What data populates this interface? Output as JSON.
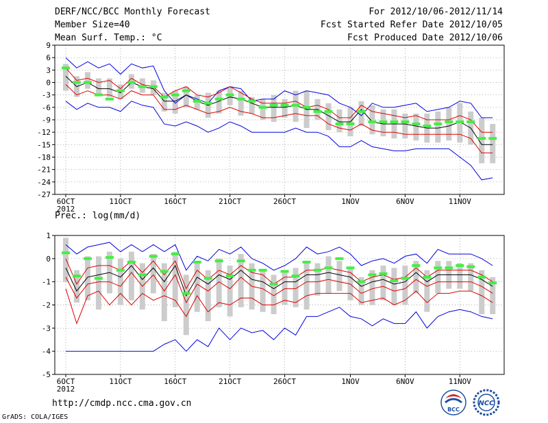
{
  "header": {
    "title": "DERF/NCC/BCC Monthly Forecast",
    "member_size": "Member Size=40",
    "variable": "Mean Surf. Temp.: °C",
    "period": "For 2012/10/06-2012/11/14",
    "started": "Fcst Started Refer Date 2012/10/05",
    "produced": "Fcst Produced Date 2012/10/06"
  },
  "footer": {
    "url": "http://cmdp.ncc.cma.gov.cn",
    "credit": "GrADS: COLA/IGES",
    "logo_left_text": "BCC",
    "logo_right_text": "NCC"
  },
  "colors": {
    "envelope": "#0000dd",
    "spread": "#dd0000",
    "mean": "#000000",
    "box": "#cccccc",
    "marker": "#44ee44"
  },
  "chart_data": [
    {
      "type": "line",
      "title": "Mean Surf. Temp.: °C",
      "x": [
        "2012-10-06",
        "2012-10-07",
        "2012-10-08",
        "2012-10-09",
        "2012-10-10",
        "2012-10-11",
        "2012-10-12",
        "2012-10-13",
        "2012-10-14",
        "2012-10-15",
        "2012-10-16",
        "2012-10-17",
        "2012-10-18",
        "2012-10-19",
        "2012-10-20",
        "2012-10-21",
        "2012-10-22",
        "2012-10-23",
        "2012-10-24",
        "2012-10-25",
        "2012-10-26",
        "2012-10-27",
        "2012-10-28",
        "2012-10-29",
        "2012-10-30",
        "2012-10-31",
        "2012-11-01",
        "2012-11-02",
        "2012-11-03",
        "2012-11-04",
        "2012-11-05",
        "2012-11-06",
        "2012-11-07",
        "2012-11-08",
        "2012-11-09",
        "2012-11-10",
        "2012-11-11",
        "2012-11-12",
        "2012-11-13",
        "2012-11-14"
      ],
      "xticks": [
        "6OCT",
        "11OCT",
        "16OCT",
        "21OCT",
        "26OCT",
        "1NOV",
        "6NOV",
        "11NOV"
      ],
      "xtick_year": "2012",
      "ylim": [
        -27,
        9
      ],
      "yticks": [
        9,
        6,
        3,
        0,
        -3,
        -6,
        -9,
        -12,
        -15,
        -18,
        -21,
        -24,
        -27
      ],
      "series": [
        {
          "name": "max",
          "color": "#0000dd",
          "values": [
            6,
            3.5,
            5,
            3.5,
            4.5,
            2,
            4.5,
            3.5,
            4,
            -2,
            -5,
            -3,
            -4,
            -5,
            -2,
            -1,
            -1.5,
            -4.5,
            -4,
            -4,
            -2,
            -3,
            -2,
            -2.5,
            -3,
            -5,
            -6,
            -8,
            -5,
            -6,
            -6,
            -5.5,
            -5,
            -7,
            -6.5,
            -6,
            -4.5,
            -5,
            -8.5,
            -8.5
          ]
        },
        {
          "name": "upper",
          "color": "#dd0000",
          "values": [
            3.5,
            0.5,
            1,
            0,
            0.5,
            -1.5,
            1,
            -0.5,
            -1,
            -3.5,
            -2,
            -1,
            -3,
            -3.5,
            -2.5,
            -1,
            -2.5,
            -4,
            -5,
            -5,
            -5,
            -4.5,
            -6,
            -5.5,
            -6.5,
            -8.5,
            -8.5,
            -5.5,
            -7,
            -7.5,
            -8,
            -8.5,
            -8,
            -9,
            -9,
            -9,
            -8,
            -9,
            -12,
            -12
          ]
        },
        {
          "name": "mean",
          "color": "#000000",
          "values": [
            1.5,
            -1,
            0,
            -1.5,
            -1.5,
            -2.5,
            0,
            -1,
            -1.5,
            -4.5,
            -4.5,
            -3,
            -4.5,
            -5.5,
            -4.5,
            -3.5,
            -4,
            -5,
            -6,
            -6,
            -6,
            -5.5,
            -6.5,
            -6.5,
            -8,
            -9.5,
            -9.5,
            -6.5,
            -9.5,
            -10,
            -10,
            -10,
            -10.5,
            -11,
            -11,
            -10.5,
            -9.5,
            -11,
            -15,
            -15
          ]
        },
        {
          "name": "lower",
          "color": "#dd0000",
          "values": [
            -0.5,
            -3,
            -2,
            -3,
            -3,
            -4,
            -2,
            -3,
            -3,
            -6.5,
            -6.5,
            -5.5,
            -6.5,
            -7.5,
            -7,
            -6,
            -7,
            -7.5,
            -8.5,
            -8.5,
            -8,
            -7.5,
            -8,
            -8,
            -10,
            -11,
            -11.5,
            -10,
            -11.5,
            -12,
            -12,
            -12.5,
            -12.5,
            -12.5,
            -12.5,
            -12.5,
            -12.5,
            -13.5,
            -17,
            -17
          ]
        },
        {
          "name": "min",
          "color": "#0000dd",
          "values": [
            -4.5,
            -6.5,
            -5,
            -6,
            -6,
            -7,
            -4.5,
            -5.5,
            -6,
            -10,
            -10.5,
            -9.5,
            -10.5,
            -12,
            -11,
            -9.5,
            -10.5,
            -12,
            -12,
            -12,
            -12,
            -11,
            -12,
            -12,
            -13,
            -15.5,
            -15.5,
            -14,
            -15.5,
            -16,
            -16.5,
            -16.5,
            -16,
            -16,
            -16,
            -16,
            -18,
            -20,
            -23.5,
            -23
          ]
        }
      ],
      "boxes": [
        [
          4.5,
          -2
        ],
        [
          1.5,
          -3.5
        ],
        [
          2.5,
          -1.5
        ],
        [
          1,
          -3
        ],
        [
          1,
          -3.5
        ],
        [
          -0.5,
          -4
        ],
        [
          2,
          -1.5
        ],
        [
          1,
          -2.5
        ],
        [
          0.5,
          -3
        ],
        [
          -2.5,
          -7
        ],
        [
          -2,
          -7.5
        ],
        [
          -1,
          -6
        ],
        [
          -3,
          -6.5
        ],
        [
          -2.5,
          -8.5
        ],
        [
          -2,
          -7.5
        ],
        [
          -1,
          -5.5
        ],
        [
          -2,
          -8
        ],
        [
          -3.5,
          -7.5
        ],
        [
          -4,
          -9
        ],
        [
          -3,
          -9.5
        ],
        [
          -4,
          -8.5
        ],
        [
          -2,
          -9.5
        ],
        [
          -2,
          -11
        ],
        [
          -4,
          -9
        ],
        [
          -5,
          -11.5
        ],
        [
          -6.5,
          -12
        ],
        [
          -6,
          -13
        ],
        [
          -4.5,
          -10.5
        ],
        [
          -5.5,
          -12.5
        ],
        [
          -6.5,
          -13
        ],
        [
          -6.5,
          -13.5
        ],
        [
          -7.5,
          -13.5
        ],
        [
          -7.5,
          -14
        ],
        [
          -7.5,
          -14.5
        ],
        [
          -7,
          -14.5
        ],
        [
          -6,
          -14
        ],
        [
          -5,
          -14.5
        ],
        [
          -7,
          -15
        ],
        [
          -8.5,
          -19.5
        ],
        [
          -10,
          -19.5
        ]
      ],
      "markers": [
        3.5,
        0,
        0,
        -3,
        -4,
        -2,
        0,
        -1,
        -1,
        -3.5,
        -3,
        -2,
        -4.5,
        -5,
        -4,
        -3,
        -4,
        -4.5,
        -6,
        -5.5,
        -5.5,
        -5.5,
        -6,
        -7,
        -7,
        -10,
        -10,
        -7,
        -9.5,
        -9.5,
        -9.5,
        -9.5,
        -10,
        -10.5,
        -10,
        -9.5,
        -9.5,
        -9.5,
        -13.5,
        -13.5
      ]
    },
    {
      "type": "line",
      "title": "Prec.: log(mm/d)",
      "x_same_as_previous": true,
      "xticks": [
        "6OCT",
        "11OCT",
        "16OCT",
        "21OCT",
        "26OCT",
        "1NOV",
        "6NOV",
        "11NOV"
      ],
      "xtick_year": "2012",
      "ylim": [
        -5,
        1
      ],
      "yticks": [
        1,
        0,
        -1,
        -2,
        -3,
        -4,
        -5
      ],
      "series": [
        {
          "name": "max",
          "color": "#0000dd",
          "values": [
            0.6,
            0.2,
            0.5,
            0.6,
            0.7,
            0.3,
            0.6,
            0.3,
            0.6,
            0.3,
            0.6,
            -0.5,
            0.1,
            -0.1,
            0.4,
            0.2,
            0.5,
            0,
            -0.2,
            -0.5,
            -0.3,
            0,
            0.5,
            0.2,
            0.3,
            0.5,
            0.2,
            -0.3,
            -0.1,
            0,
            -0.2,
            0.1,
            0.2,
            -0.2,
            0.4,
            0.2,
            0.2,
            0.2,
            0,
            -0.3
          ]
        },
        {
          "name": "upper",
          "color": "#dd0000",
          "values": [
            0,
            -1.1,
            -0.4,
            -0.3,
            -0.3,
            -0.5,
            -0.1,
            -0.6,
            -0.1,
            -0.7,
            -0.1,
            -1.3,
            -0.5,
            -0.9,
            -0.5,
            -0.7,
            -0.3,
            -0.6,
            -0.7,
            -1.1,
            -0.8,
            -0.8,
            -0.5,
            -0.5,
            -0.4,
            -0.5,
            -0.6,
            -1,
            -0.8,
            -0.7,
            -0.9,
            -0.8,
            -0.4,
            -0.8,
            -0.5,
            -0.5,
            -0.5,
            -0.5,
            -0.7,
            -1
          ]
        },
        {
          "name": "mean",
          "color": "#000000",
          "values": [
            -0.4,
            -1.4,
            -0.8,
            -0.7,
            -0.6,
            -0.8,
            -0.3,
            -0.9,
            -0.4,
            -1,
            -0.3,
            -1.6,
            -0.8,
            -1.1,
            -0.7,
            -0.9,
            -0.5,
            -0.9,
            -1,
            -1.3,
            -1,
            -1,
            -0.7,
            -0.7,
            -0.6,
            -0.7,
            -0.8,
            -1.2,
            -1,
            -0.9,
            -1.1,
            -1,
            -0.6,
            -1,
            -0.7,
            -0.7,
            -0.7,
            -0.7,
            -0.9,
            -1.2
          ]
        },
        {
          "name": "lower",
          "color": "#dd0000",
          "values": [
            -0.8,
            -1.7,
            -1.1,
            -1,
            -1,
            -1.2,
            -0.6,
            -1.2,
            -0.7,
            -1.4,
            -0.7,
            -1.9,
            -1.1,
            -1.4,
            -1,
            -1.3,
            -0.8,
            -1.2,
            -1.3,
            -1.6,
            -1.3,
            -1.3,
            -1,
            -1,
            -0.9,
            -1,
            -1.1,
            -1.5,
            -1.3,
            -1.2,
            -1.4,
            -1.3,
            -0.9,
            -1.2,
            -1,
            -1,
            -1,
            -1,
            -1.2,
            -1.5
          ]
        },
        {
          "name": "lower2",
          "color": "#dd0000",
          "values": [
            -1.3,
            -2.8,
            -1.6,
            -1.4,
            -2,
            -1.5,
            -2,
            -1.5,
            -1.8,
            -1.6,
            -1.8,
            -2.5,
            -1.6,
            -2.3,
            -1.9,
            -2,
            -1.7,
            -1.7,
            -2,
            -2,
            -1.8,
            -1.9,
            -1.6,
            -1.5,
            -1.5,
            -1.5,
            -1.5,
            -1.9,
            -1.8,
            -1.7,
            -2,
            -1.8,
            -1.4,
            -1.9,
            -1.5,
            -1.5,
            -1.4,
            -1.4,
            -1.6,
            -1.9
          ]
        },
        {
          "name": "min",
          "color": "#0000dd",
          "values": [
            -4,
            -4,
            -4,
            -4,
            -4,
            -4,
            -4,
            -4,
            -4,
            -3.7,
            -3.5,
            -4,
            -3.5,
            -3.8,
            -3,
            -3.5,
            -3,
            -3.2,
            -3.1,
            -3.5,
            -3,
            -3.3,
            -2.5,
            -2.5,
            -2.3,
            -2.1,
            -2.5,
            -2.6,
            -2.9,
            -2.6,
            -2.8,
            -2.8,
            -2.3,
            -3,
            -2.5,
            -2.3,
            -2.2,
            -2.3,
            -2.5,
            -2.6
          ]
        }
      ],
      "boxes": [
        [
          0.9,
          -1
        ],
        [
          -0.5,
          -1.9
        ],
        [
          0.1,
          -1.8
        ],
        [
          0.1,
          -2.2
        ],
        [
          0.3,
          -1.5
        ],
        [
          0,
          -2
        ],
        [
          0.3,
          -1.8
        ],
        [
          -0.2,
          -2.2
        ],
        [
          0.2,
          -1.5
        ],
        [
          -0.2,
          -2.7
        ],
        [
          0.3,
          -2.1
        ],
        [
          -0.7,
          -3.3
        ],
        [
          -0.2,
          -2.3
        ],
        [
          -0.5,
          -2.7
        ],
        [
          0,
          -2.1
        ],
        [
          -0.3,
          -2.5
        ],
        [
          0.2,
          -2.1
        ],
        [
          -0.2,
          -2.2
        ],
        [
          -0.5,
          -2.3
        ],
        [
          -0.7,
          -2.4
        ],
        [
          -0.5,
          -2
        ],
        [
          -0.4,
          -2.1
        ],
        [
          -0.1,
          -2.2
        ],
        [
          -0.2,
          -1.6
        ],
        [
          0.1,
          -1.5
        ],
        [
          -0.1,
          -1.4
        ],
        [
          -0.4,
          -1.8
        ],
        [
          -0.8,
          -2
        ],
        [
          -0.5,
          -2
        ],
        [
          -0.3,
          -1.8
        ],
        [
          -0.4,
          -2
        ],
        [
          -0.3,
          -2
        ],
        [
          -0.1,
          -1.5
        ],
        [
          -0.5,
          -2.3
        ],
        [
          -0.1,
          -1.5
        ],
        [
          -0.1,
          -1.3
        ],
        [
          -0.2,
          -1.3
        ],
        [
          -0.2,
          -1.4
        ],
        [
          -0.5,
          -2.4
        ],
        [
          -0.8,
          -2.4
        ]
      ],
      "markers": [
        0.25,
        -0.75,
        0,
        -0.85,
        0.05,
        -0.5,
        -0.15,
        -0.7,
        0.1,
        -0.55,
        0.2,
        -1.5,
        -0.15,
        -0.85,
        -0.1,
        -0.75,
        -0.1,
        -0.5,
        -0.5,
        -1.1,
        -0.55,
        -0.75,
        -0.15,
        -0.5,
        -0.4,
        0,
        -0.4,
        -1,
        -0.7,
        -0.65,
        -0.95,
        -0.85,
        -0.3,
        -0.8,
        -0.4,
        -0.4,
        -0.3,
        -0.35,
        -0.8,
        -1.05
      ]
    }
  ]
}
